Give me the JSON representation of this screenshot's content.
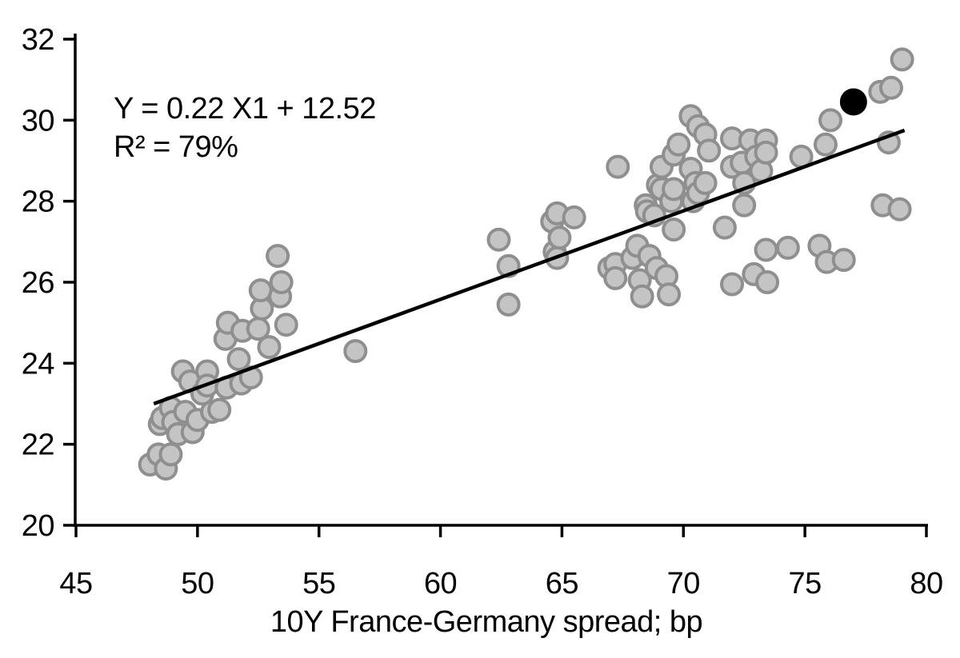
{
  "chart_data": {
    "type": "scatter",
    "title": "",
    "xlabel": "10Y France-Germany spread; bp",
    "ylabel": "",
    "xlim": [
      45,
      80
    ],
    "ylim": [
      20,
      32
    ],
    "x_ticks": [
      45,
      50,
      55,
      60,
      65,
      70,
      75,
      80
    ],
    "y_ticks": [
      20,
      22,
      24,
      26,
      28,
      30,
      32
    ],
    "grid": false,
    "legend_position": "none",
    "annotation": {
      "line1": "Y = 0.22 X1 + 12.52",
      "line2": "R² = 79%"
    },
    "regression": {
      "slope": 0.22,
      "intercept": 12.52,
      "r_squared_pct": 79,
      "line_color": "#000000",
      "line_endpoints": [
        [
          48.2,
          23.0
        ],
        [
          79.1,
          29.75
        ]
      ]
    },
    "series": [
      {
        "name": "observations",
        "marker": "circle",
        "fill": "#c4c4c4",
        "stroke": "#8f8f8f",
        "points": [
          [
            48.05,
            21.5
          ],
          [
            48.4,
            21.75
          ],
          [
            48.7,
            21.4
          ],
          [
            48.9,
            21.75
          ],
          [
            48.45,
            22.5
          ],
          [
            48.55,
            22.65
          ],
          [
            48.9,
            22.9
          ],
          [
            49.0,
            22.55
          ],
          [
            49.2,
            22.25
          ],
          [
            49.5,
            22.8
          ],
          [
            49.8,
            22.3
          ],
          [
            50.0,
            22.6
          ],
          [
            50.6,
            22.8
          ],
          [
            50.9,
            22.85
          ],
          [
            49.4,
            23.8
          ],
          [
            49.7,
            23.55
          ],
          [
            50.2,
            23.25
          ],
          [
            50.4,
            23.8
          ],
          [
            50.4,
            23.45
          ],
          [
            51.2,
            23.4
          ],
          [
            51.8,
            23.5
          ],
          [
            52.2,
            23.65
          ],
          [
            51.15,
            24.6
          ],
          [
            51.25,
            25.0
          ],
          [
            51.7,
            24.1
          ],
          [
            51.85,
            24.8
          ],
          [
            52.5,
            24.85
          ],
          [
            52.65,
            25.35
          ],
          [
            52.95,
            24.4
          ],
          [
            53.65,
            24.95
          ],
          [
            52.6,
            25.8
          ],
          [
            53.4,
            25.65
          ],
          [
            53.45,
            26.0
          ],
          [
            53.3,
            26.65
          ],
          [
            56.5,
            24.3
          ],
          [
            62.4,
            27.05
          ],
          [
            62.8,
            26.4
          ],
          [
            62.8,
            25.45
          ],
          [
            64.6,
            27.5
          ],
          [
            64.7,
            26.75
          ],
          [
            64.8,
            27.7
          ],
          [
            64.8,
            26.6
          ],
          [
            64.9,
            27.1
          ],
          [
            65.5,
            27.6
          ],
          [
            67.3,
            28.85
          ],
          [
            68.45,
            27.9
          ],
          [
            68.5,
            27.75
          ],
          [
            68.8,
            27.65
          ],
          [
            68.95,
            28.4
          ],
          [
            69.1,
            28.85
          ],
          [
            69.1,
            28.3
          ],
          [
            69.5,
            28.0
          ],
          [
            69.6,
            29.15
          ],
          [
            69.6,
            28.3
          ],
          [
            69.6,
            27.3
          ],
          [
            69.8,
            29.4
          ],
          [
            70.3,
            30.1
          ],
          [
            70.3,
            28.8
          ],
          [
            70.4,
            28.0
          ],
          [
            70.5,
            28.45
          ],
          [
            70.6,
            29.85
          ],
          [
            70.6,
            28.2
          ],
          [
            70.9,
            29.65
          ],
          [
            70.9,
            28.45
          ],
          [
            71.05,
            29.25
          ],
          [
            71.7,
            27.35
          ],
          [
            72.0,
            29.55
          ],
          [
            72.0,
            28.85
          ],
          [
            72.4,
            28.95
          ],
          [
            72.5,
            28.45
          ],
          [
            72.5,
            27.9
          ],
          [
            72.75,
            29.5
          ],
          [
            73.0,
            29.1
          ],
          [
            73.2,
            28.75
          ],
          [
            73.4,
            29.5
          ],
          [
            73.4,
            29.2
          ],
          [
            66.95,
            26.35
          ],
          [
            67.2,
            26.45
          ],
          [
            67.2,
            26.1
          ],
          [
            67.9,
            26.6
          ],
          [
            68.1,
            26.9
          ],
          [
            68.2,
            26.05
          ],
          [
            68.3,
            25.65
          ],
          [
            68.6,
            26.65
          ],
          [
            68.9,
            26.35
          ],
          [
            69.3,
            26.15
          ],
          [
            69.4,
            25.7
          ],
          [
            72.0,
            25.95
          ],
          [
            72.9,
            26.2
          ],
          [
            73.4,
            26.8
          ],
          [
            73.45,
            26.0
          ],
          [
            74.3,
            26.85
          ],
          [
            75.6,
            26.9
          ],
          [
            75.9,
            26.5
          ],
          [
            76.6,
            26.55
          ],
          [
            78.2,
            27.9
          ],
          [
            78.9,
            27.8
          ],
          [
            74.85,
            29.1
          ],
          [
            75.85,
            29.4
          ],
          [
            76.05,
            30.0
          ],
          [
            78.1,
            30.7
          ],
          [
            78.55,
            30.8
          ],
          [
            78.45,
            29.45
          ],
          [
            79.0,
            31.5
          ]
        ]
      },
      {
        "name": "latest-observation",
        "marker": "circle",
        "fill": "#000000",
        "stroke": "#000000",
        "points": [
          [
            77.0,
            30.45
          ]
        ]
      }
    ]
  },
  "style": {
    "background": "#ffffff",
    "axis_color": "#000000",
    "text_color": "#000000"
  }
}
